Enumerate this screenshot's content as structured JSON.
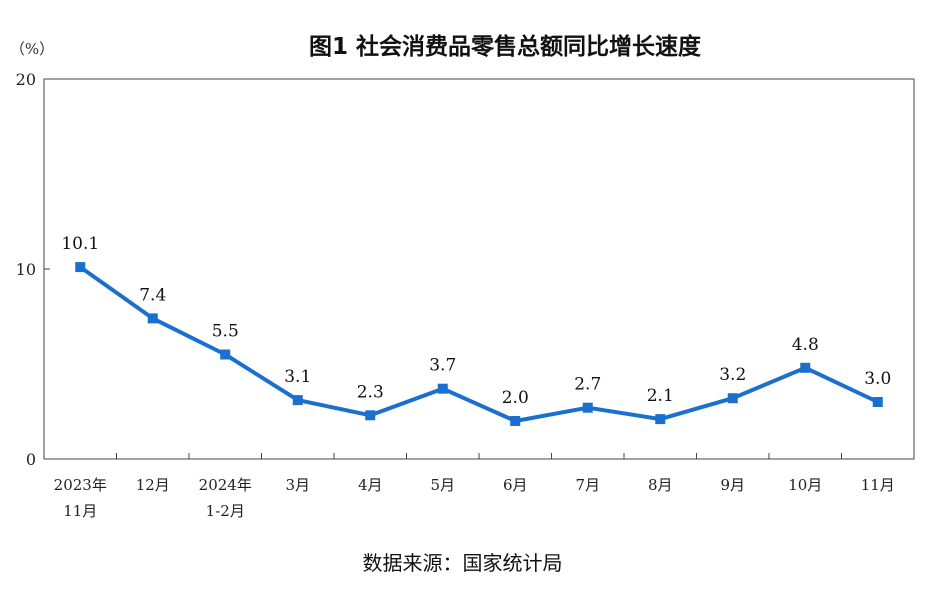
{
  "chart_data": {
    "type": "line",
    "title": "图1  社会消费品零售总额同比增长速度",
    "ylabel": "（%）",
    "ylim": [
      0,
      20
    ],
    "yticks": [
      "0",
      "10",
      "20"
    ],
    "categories": [
      [
        "2023年",
        "11月"
      ],
      [
        "12月"
      ],
      [
        "2024年",
        "1-2月"
      ],
      [
        "3月"
      ],
      [
        "4月"
      ],
      [
        "5月"
      ],
      [
        "6月"
      ],
      [
        "7月"
      ],
      [
        "8月"
      ],
      [
        "9月"
      ],
      [
        "10月"
      ],
      [
        "11月"
      ]
    ],
    "series": [
      {
        "name": "社会消费品零售总额同比增长速度",
        "values": [
          10.1,
          7.4,
          5.5,
          3.1,
          2.3,
          3.7,
          2.0,
          2.7,
          2.1,
          3.2,
          4.8,
          3.0
        ],
        "labels": [
          "10.1",
          "7.4",
          "5.5",
          "3.1",
          "2.3",
          "3.7",
          "2.0",
          "2.7",
          "2.1",
          "3.2",
          "4.8",
          "3.0"
        ]
      }
    ],
    "line_color": "#1a6fcf"
  },
  "source": "数据来源：国家统计局"
}
